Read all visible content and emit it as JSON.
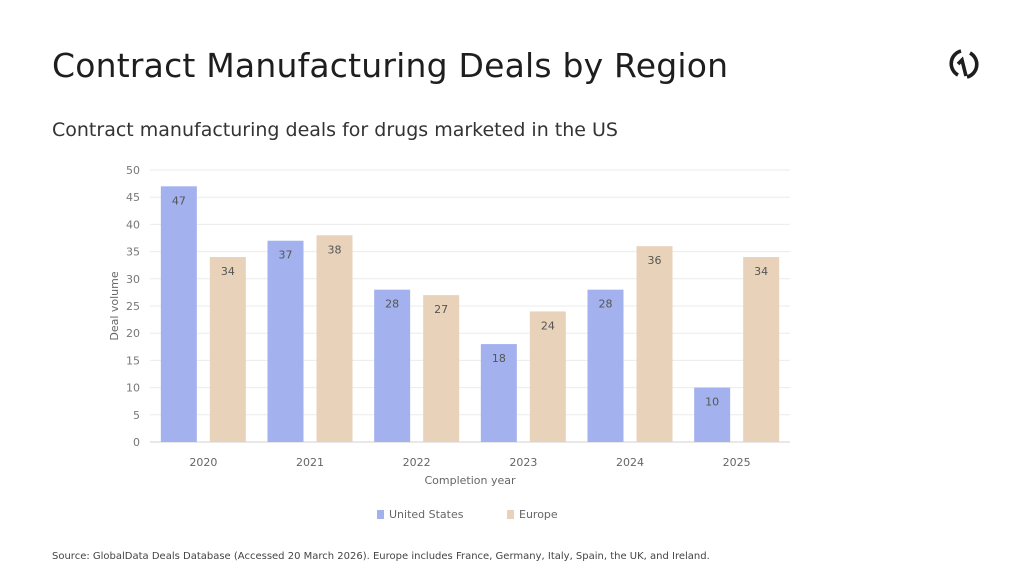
{
  "title": "Contract Manufacturing Deals by Region",
  "subtitle": "Contract manufacturing deals for drugs marketed in the US",
  "source": "Source: GlobalData Deals Database (Accessed 20 March 2026). Europe includes France, Germany, Italy, Spain, the UK, and Ireland.",
  "logo_icon": "globaldata-logo-icon",
  "chart_data": {
    "type": "bar",
    "categories": [
      "2020",
      "2021",
      "2022",
      "2023",
      "2024",
      "2025"
    ],
    "series": [
      {
        "name": "United States",
        "values": [
          47,
          37,
          28,
          18,
          28,
          10
        ],
        "color": "#a3b2ee"
      },
      {
        "name": "Europe",
        "values": [
          34,
          38,
          27,
          24,
          36,
          34
        ],
        "color": "#e8d3ba"
      }
    ],
    "xlabel": "Completion year",
    "ylabel": "Deal volume",
    "ylim": [
      0,
      50
    ],
    "yticks": [
      0,
      5,
      10,
      15,
      20,
      25,
      30,
      35,
      40,
      45,
      50
    ],
    "grid": true,
    "data_labels": true,
    "legend": "bottom"
  }
}
